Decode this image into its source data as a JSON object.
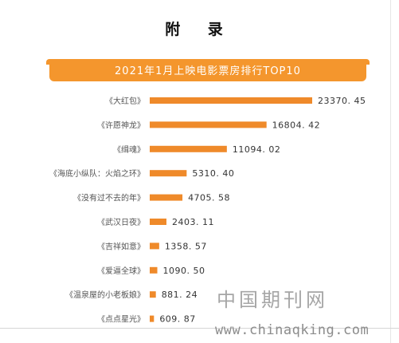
{
  "page": {
    "heading": "附  录"
  },
  "chart_data": {
    "type": "bar",
    "orientation": "horizontal",
    "title": "2021年1月上映电影票房排行TOP10",
    "categories": [
      "《大红包》",
      "《许愿神龙》",
      "《缉魂》",
      "《海底小纵队：火焰之环》",
      "《没有过不去的年》",
      "《武汉日夜》",
      "《吉祥如意》",
      "《爱逼全球》",
      "《温泉屋的小老板娘》",
      "《点点星光》"
    ],
    "values": [
      23370.45,
      16804.42,
      11094.02,
      5310.4,
      4705.58,
      2403.11,
      1358.57,
      1090.5,
      881.24,
      609.87
    ],
    "value_labels": [
      "23370. 45",
      "16804. 42",
      "11094. 02",
      "5310. 40",
      "4705. 58",
      "2403. 11",
      "1358. 57",
      "1090. 50",
      "881. 24",
      "609. 87"
    ],
    "xlim": [
      0,
      23370.45
    ],
    "bar_color": "#ef8a2a",
    "grid": false,
    "legend": "none"
  },
  "watermark": {
    "cn": "中国期刊网",
    "url": "www.chinaqking.com"
  }
}
